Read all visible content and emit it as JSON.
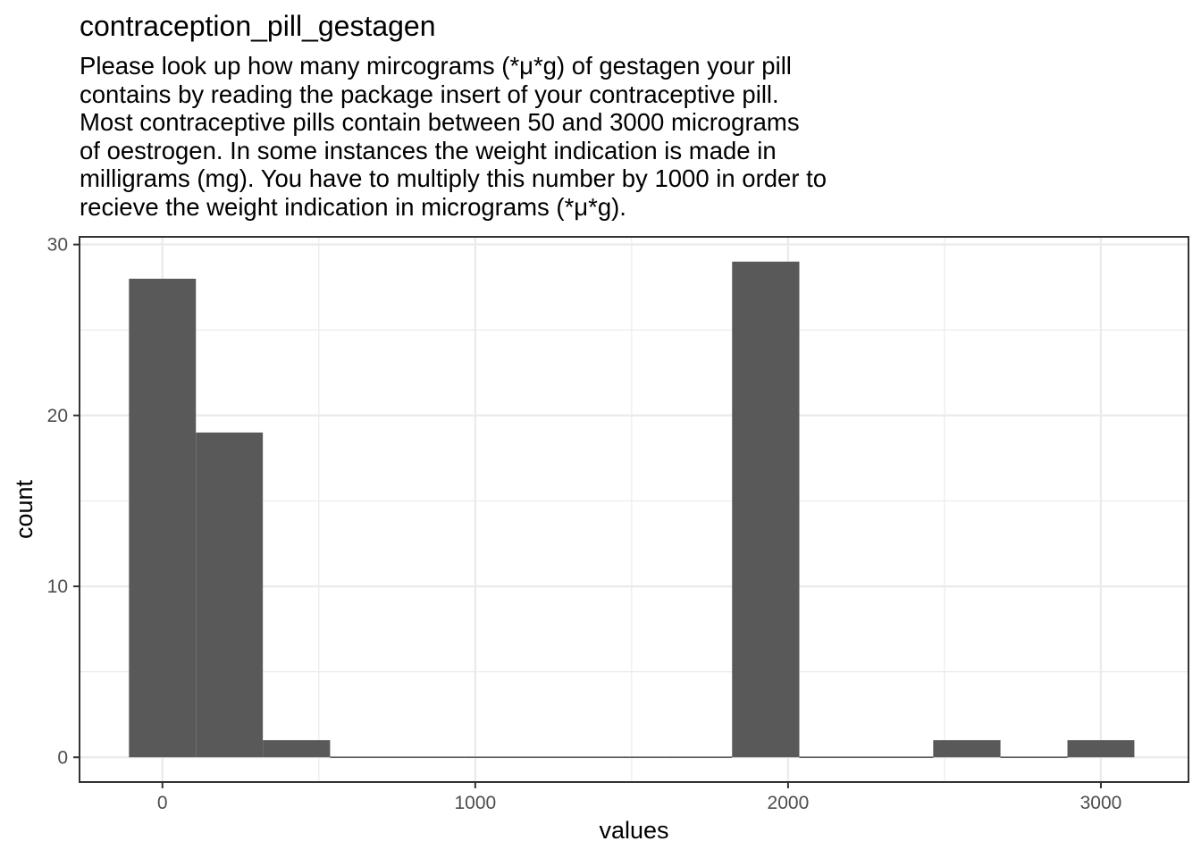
{
  "chart_data": {
    "type": "bar",
    "subtype": "histogram",
    "title": "contraception_pill_gestagen",
    "subtitle_lines": [
      "Please look up how many mircograms (*μ*g) of gestagen your pill",
      "contains by reading the package insert of your contraceptive pill.",
      "Most contraceptive pills contain between 50 and 3000 micrograms",
      "of oestrogen. In some instances the weight indication is made in",
      "milligrams (mg). You have to multiply this number by 1000 in order to",
      "recieve the weight indication in micrograms (*μ*g)."
    ],
    "xlabel": "values",
    "ylabel": "count",
    "xlim": [
      -265,
      3280
    ],
    "ylim": [
      -1.45,
      30.45
    ],
    "x_ticks": [
      0,
      1000,
      2000,
      3000
    ],
    "x_minor_ticks": [
      500,
      1500,
      2500
    ],
    "y_ticks": [
      0,
      10,
      20,
      30
    ],
    "y_minor_ticks": [
      5,
      15,
      25
    ],
    "bin_width": 214.3,
    "bins": [
      {
        "x_start": -107,
        "x_end": 107,
        "count": 28
      },
      {
        "x_start": 107,
        "x_end": 321,
        "count": 19
      },
      {
        "x_start": 321,
        "x_end": 536,
        "count": 1
      },
      {
        "x_start": 536,
        "x_end": 750,
        "count": 0
      },
      {
        "x_start": 750,
        "x_end": 964,
        "count": 0
      },
      {
        "x_start": 964,
        "x_end": 1179,
        "count": 0
      },
      {
        "x_start": 1179,
        "x_end": 1393,
        "count": 0
      },
      {
        "x_start": 1393,
        "x_end": 1607,
        "count": 0
      },
      {
        "x_start": 1607,
        "x_end": 1821,
        "count": 0
      },
      {
        "x_start": 1821,
        "x_end": 2036,
        "count": 29
      },
      {
        "x_start": 2036,
        "x_end": 2250,
        "count": 0
      },
      {
        "x_start": 2250,
        "x_end": 2464,
        "count": 0
      },
      {
        "x_start": 2464,
        "x_end": 2679,
        "count": 1
      },
      {
        "x_start": 2679,
        "x_end": 2893,
        "count": 0
      },
      {
        "x_start": 2893,
        "x_end": 3107,
        "count": 1
      }
    ],
    "bar_color": "#595959",
    "grid": true,
    "grid_color": "#ebebeb",
    "panel_border_color": "#333333"
  }
}
